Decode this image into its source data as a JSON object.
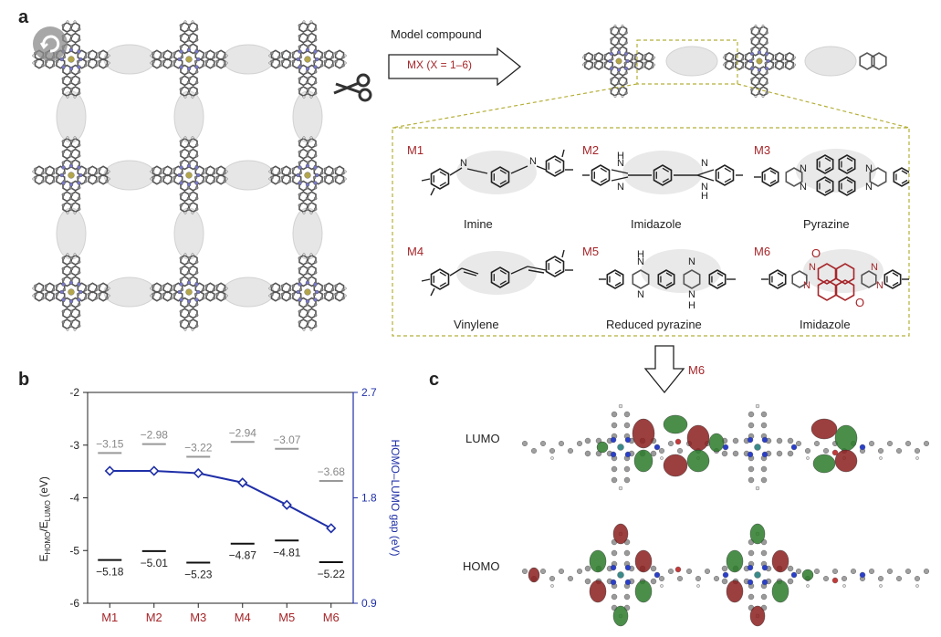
{
  "panels": {
    "a": "a",
    "b": "b",
    "c": "c"
  },
  "arrow_model": {
    "title": "Model compound",
    "box_label": "MX (X = 1–6)"
  },
  "compounds": [
    {
      "id": "M1",
      "name": "Imine"
    },
    {
      "id": "M2",
      "name": "Imidazole"
    },
    {
      "id": "M3",
      "name": "Pyrazine"
    },
    {
      "id": "M4",
      "name": "Vinylene"
    },
    {
      "id": "M5",
      "name": "Reduced pyrazine"
    },
    {
      "id": "M6",
      "name": "Imidazole"
    }
  ],
  "arrow_down_label": "M6",
  "orbitals": {
    "lumo": "LUMO",
    "homo": "HOMO"
  },
  "colors": {
    "accent_red": "#a6262a",
    "gap_blue": "#1f2fa8",
    "dash_olive": "#b5b03a"
  },
  "chart_data": {
    "type": "line",
    "categories": [
      "M1",
      "M2",
      "M3",
      "M4",
      "M5",
      "M6"
    ],
    "ylabel": "E_HOMO/E_LUMO (eV)",
    "ylabel_main": "E",
    "ylabel_sub1": "HOMO",
    "ylabel_mid": "/E",
    "ylabel_sub2": "LUMO",
    "ylabel_unit": " (eV)",
    "y2label": "HOMO–LUMO gap (eV)",
    "ylim": [
      -6,
      -2
    ],
    "y2lim": [
      0.9,
      2.7
    ],
    "yticks": [
      "-2",
      "-3",
      "-4",
      "-5",
      "-6"
    ],
    "y2ticks": [
      "2.7",
      "1.8",
      "0.9"
    ],
    "series": [
      {
        "values": [
          -3.15,
          -2.98,
          -3.22,
          -2.94,
          -3.07,
          -3.68
        ]
      },
      {
        "values": [
          -5.18,
          -5.01,
          -5.23,
          -4.87,
          -4.81,
          -5.22
        ]
      },
      {
        "values": [
          2.03,
          2.03,
          2.01,
          1.93,
          1.74,
          1.54
        ]
      }
    ],
    "lumo_labels": [
      "−3.15",
      "−2.98",
      "−3.22",
      "−2.94",
      "−3.07",
      "−3.68"
    ],
    "homo_labels": [
      "−5.18",
      "−5.01",
      "−5.23",
      "−4.87",
      "−4.81",
      "−5.22"
    ]
  }
}
